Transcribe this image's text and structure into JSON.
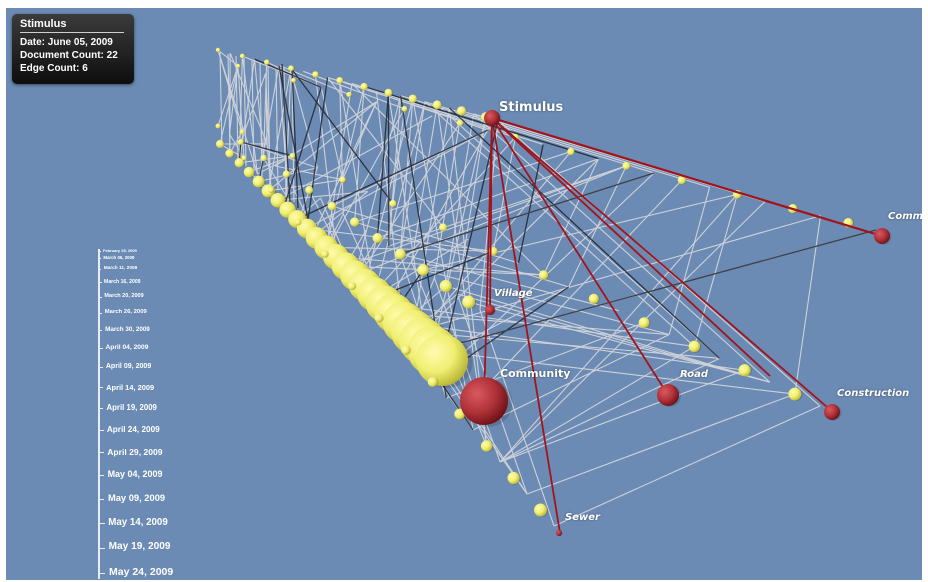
{
  "colors": {
    "background": "#6b8bb4",
    "highlight_node": "#b1333a",
    "highlight_edge": "#a2141c",
    "node": "#f0ef72",
    "edge_light": "#d9d9dc",
    "edge_dark": "#1c1d24"
  },
  "info_panel": {
    "title": "Stimulus",
    "date": "Date: June 05, 2009",
    "document_count": "Document Count: 22",
    "edge_count": "Edge Count: 6"
  },
  "node_labels": {
    "stimulus": "Stimulus",
    "village": "Village",
    "community": "Community",
    "road": "Road",
    "construction": "Construction",
    "sewer": "Sewer",
    "committee": "Committee"
  },
  "timeline": {
    "dates": [
      "February 25, 2009",
      "March 06, 2009",
      "March 11, 2009",
      "March 16, 2009",
      "March 20, 2009",
      "March 26, 2009",
      "March 30, 2009",
      "April 04, 2009",
      "April 09, 2009",
      "April 14, 2009",
      "April 19, 2009",
      "April 24, 2009",
      "April 29, 2009",
      "May 04, 2009",
      "May 09, 2009",
      "May 14, 2009",
      "May 19, 2009",
      "May 24, 2009"
    ]
  }
}
